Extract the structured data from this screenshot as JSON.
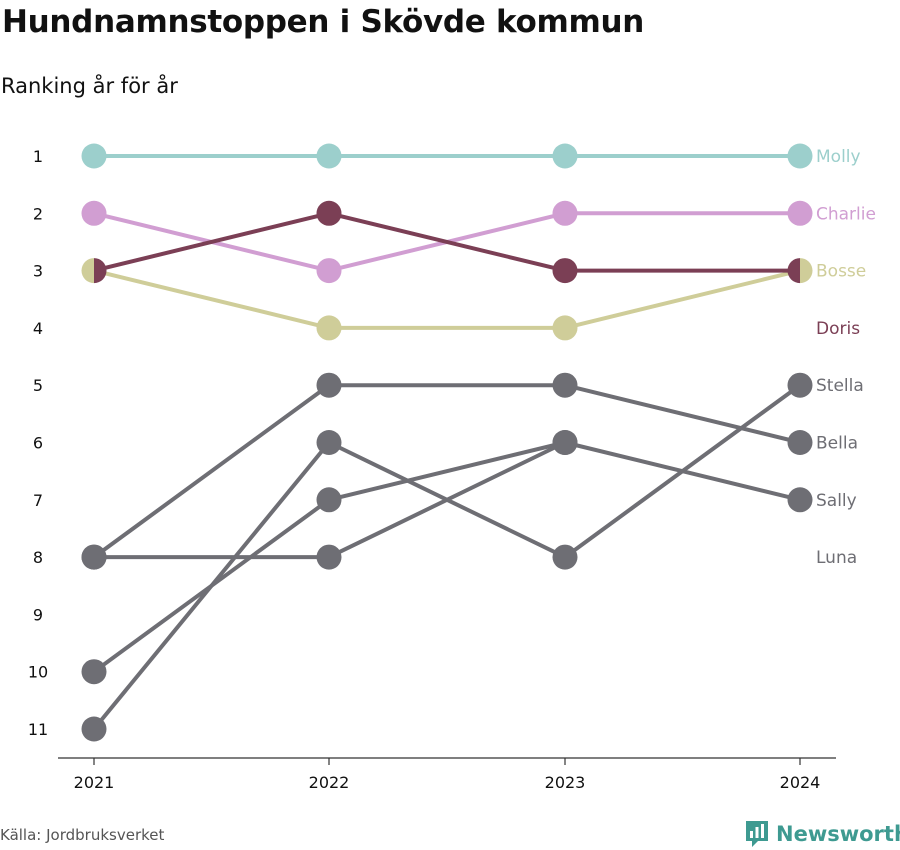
{
  "header": {
    "title": "Hundnamnstoppen i Skövde kommun",
    "subtitle": "Ranking år för år"
  },
  "footer": {
    "source": "Källa: Jordbruksverket",
    "brand": "Newsworthy"
  },
  "colors": {
    "Molly": "#9ccfcc",
    "Charlie": "#d19ed2",
    "Doris": "#7b3f55",
    "Bosse": "#cfcd99",
    "gray": "#6e6e74",
    "axis": "#333333",
    "brand": "#3e9a91"
  },
  "chart_data": {
    "type": "line",
    "subtype": "bump",
    "title": "Hundnamnstoppen i Skövde kommun",
    "subtitle": "Ranking år för år",
    "x": [
      "2021",
      "2022",
      "2023",
      "2024"
    ],
    "y_ticks": [
      1,
      2,
      3,
      4,
      5,
      6,
      7,
      8,
      9,
      10,
      11
    ],
    "y_reversed": true,
    "ylim": [
      1,
      11
    ],
    "grid": false,
    "legend": "end labels at right",
    "series": [
      {
        "name": "Molly",
        "values": [
          1,
          1,
          1,
          1
        ],
        "highlight": true
      },
      {
        "name": "Charlie",
        "values": [
          2,
          3,
          2,
          2
        ],
        "highlight": true
      },
      {
        "name": "Bosse",
        "values": [
          3,
          4,
          4,
          3
        ],
        "highlight": true
      },
      {
        "name": "Doris",
        "values": [
          3,
          2,
          3,
          3
        ],
        "highlight": true
      },
      {
        "name": "Stella",
        "values": [
          11,
          6,
          8,
          5
        ],
        "highlight": false
      },
      {
        "name": "Bella",
        "values": [
          8,
          5,
          5,
          6
        ],
        "highlight": false
      },
      {
        "name": "Sally",
        "values": [
          10,
          7,
          6,
          7
        ],
        "highlight": false
      },
      {
        "name": "Luna",
        "values": [
          8,
          8,
          6,
          null
        ],
        "highlight": false
      }
    ],
    "label_rank": {
      "Molly": 1,
      "Charlie": 2,
      "Bosse": 3,
      "Doris": 4,
      "Stella": 5,
      "Bella": 6,
      "Sally": 7,
      "Luna": 8
    },
    "split_points": [
      {
        "x": "2021",
        "y": 3,
        "series": [
          "Bosse",
          "Doris"
        ]
      },
      {
        "x": "2024",
        "y": 3,
        "series": [
          "Doris",
          "Bosse"
        ]
      }
    ]
  }
}
